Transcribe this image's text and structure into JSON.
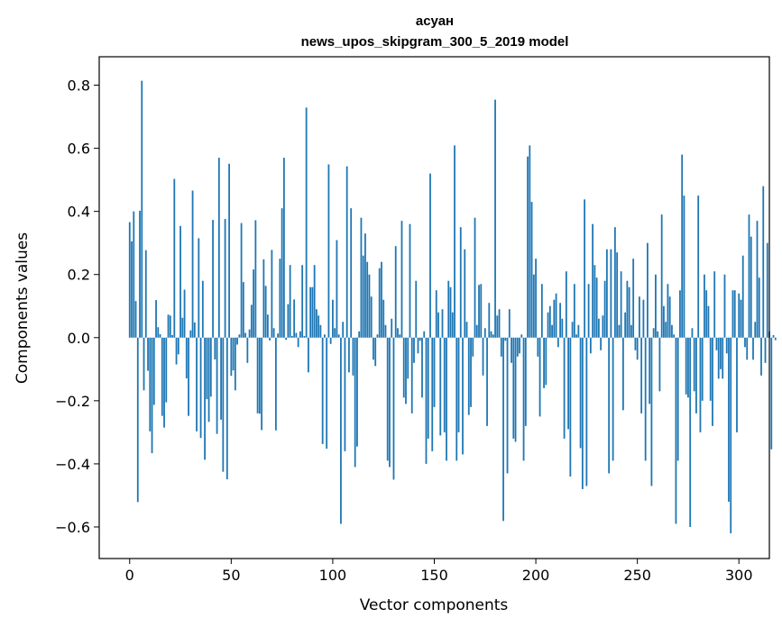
{
  "chart_data": {
    "type": "bar",
    "title_line1": "асуан",
    "title_line2": "news_upos_skipgram_300_5_2019 model",
    "xlabel": "Vector components",
    "ylabel": "Components values",
    "xlim": [
      -15,
      315
    ],
    "ylim": [
      -0.7,
      0.89
    ],
    "xticks": [
      0,
      50,
      100,
      150,
      200,
      250,
      300
    ],
    "xtick_labels": [
      "0",
      "50",
      "100",
      "150",
      "200",
      "250",
      "300"
    ],
    "yticks": [
      -0.6,
      -0.4,
      -0.2,
      0.0,
      0.2,
      0.4,
      0.6,
      0.8
    ],
    "ytick_labels": [
      "−0.6",
      "−0.4",
      "−0.2",
      "0.0",
      "0.2",
      "0.4",
      "0.6",
      "0.8"
    ],
    "bar_color": "#1f77b4",
    "values": [
      0.366,
      0.305,
      0.4,
      0.116,
      -0.521,
      0.402,
      0.814,
      -0.167,
      0.277,
      -0.105,
      -0.297,
      -0.366,
      -0.213,
      0.119,
      0.033,
      0.011,
      -0.248,
      -0.285,
      -0.205,
      0.073,
      0.07,
      0.008,
      0.503,
      -0.085,
      -0.053,
      0.354,
      0.063,
      0.152,
      -0.129,
      -0.248,
      0.023,
      0.466,
      0.048,
      -0.297,
      0.315,
      -0.318,
      0.18,
      -0.387,
      -0.195,
      -0.267,
      -0.187,
      0.373,
      -0.069,
      -0.305,
      0.57,
      -0.26,
      -0.425,
      0.376,
      -0.449,
      0.551,
      -0.121,
      -0.104,
      -0.167,
      -0.022,
      0.01,
      0.363,
      0.176,
      0.015,
      -0.08,
      0.026,
      0.104,
      0.216,
      0.372,
      -0.24,
      -0.241,
      -0.293,
      0.248,
      0.164,
      0.073,
      -0.009,
      0.278,
      0.03,
      -0.294,
      0.013,
      0.25,
      0.41,
      0.57,
      -0.007,
      0.106,
      0.23,
      0.005,
      0.121,
      0.015,
      -0.03,
      0.02,
      0.23,
      0.005,
      0.729,
      -0.11,
      0.16,
      0.16,
      0.23,
      0.09,
      0.07,
      0.04,
      -0.337,
      0.01,
      -0.352,
      0.549,
      -0.02,
      0.12,
      0.03,
      0.309,
      0.01,
      -0.59,
      0.05,
      -0.36,
      0.543,
      -0.11,
      0.41,
      -0.12,
      -0.41,
      -0.345,
      0.02,
      0.38,
      0.26,
      0.33,
      0.24,
      0.2,
      0.13,
      -0.07,
      -0.09,
      0.01,
      0.22,
      0.24,
      0.12,
      0.04,
      -0.39,
      -0.41,
      0.06,
      -0.45,
      0.29,
      0.03,
      0.01,
      0.37,
      -0.19,
      -0.21,
      -0.13,
      0.36,
      -0.24,
      -0.08,
      0.18,
      -0.05,
      -0.01,
      -0.19,
      0.02,
      -0.4,
      -0.32,
      0.52,
      -0.36,
      -0.22,
      0.15,
      0.08,
      -0.31,
      0.09,
      -0.3,
      -0.39,
      0.18,
      0.16,
      0.08,
      0.609,
      -0.39,
      -0.3,
      0.35,
      -0.37,
      0.28,
      0.05,
      -0.245,
      -0.22,
      -0.06,
      0.38,
      0.04,
      0.167,
      0.17,
      -0.12,
      0.03,
      -0.28,
      0.11,
      0.02,
      0.01,
      0.754,
      0.07,
      0.09,
      -0.06,
      -0.581,
      -0.01,
      -0.43,
      0.09,
      -0.08,
      -0.32,
      -0.33,
      -0.06,
      -0.05,
      0.01,
      -0.39,
      -0.28,
      0.574,
      0.609,
      0.43,
      0.2,
      0.25,
      -0.06,
      -0.25,
      0.17,
      -0.16,
      -0.15,
      0.08,
      0.1,
      0.04,
      0.12,
      0.14,
      -0.03,
      0.11,
      0.06,
      -0.32,
      0.21,
      -0.29,
      -0.44,
      0.05,
      0.17,
      0.01,
      0.04,
      -0.35,
      -0.48,
      0.438,
      -0.47,
      0.17,
      -0.05,
      0.36,
      0.23,
      0.19,
      0.06,
      -0.04,
      0.07,
      0.18,
      0.28,
      -0.43,
      0.28,
      -0.39,
      0.35,
      0.27,
      0.04,
      0.21,
      -0.23,
      0.08,
      0.18,
      0.16,
      0.04,
      0.25,
      -0.04,
      -0.07,
      0.13,
      -0.24,
      0.12,
      -0.39,
      0.3,
      -0.21,
      -0.47,
      0.03,
      0.2,
      0.02,
      -0.17,
      0.39,
      0.1,
      0.05,
      0.17,
      0.13,
      0.04,
      0.01,
      -0.59,
      -0.39,
      0.15,
      0.58,
      0.45,
      -0.18,
      -0.19,
      -0.6,
      0.03,
      -0.17,
      -0.24,
      0.45,
      -0.3,
      -0.2,
      0.2,
      0.15,
      0.1,
      -0.2,
      -0.28,
      0.21,
      -0.04,
      -0.13,
      -0.1,
      -0.13,
      0.2,
      -0.05,
      -0.52,
      -0.62,
      0.15,
      0.15,
      -0.3,
      0.14,
      0.12,
      0.26,
      -0.03,
      -0.07,
      0.39,
      0.32,
      -0.07,
      0.05,
      0.37,
      0.19,
      -0.12,
      0.48,
      -0.08,
      0.3,
      0.02,
      -0.354,
      0.008,
      -0.008
    ]
  }
}
